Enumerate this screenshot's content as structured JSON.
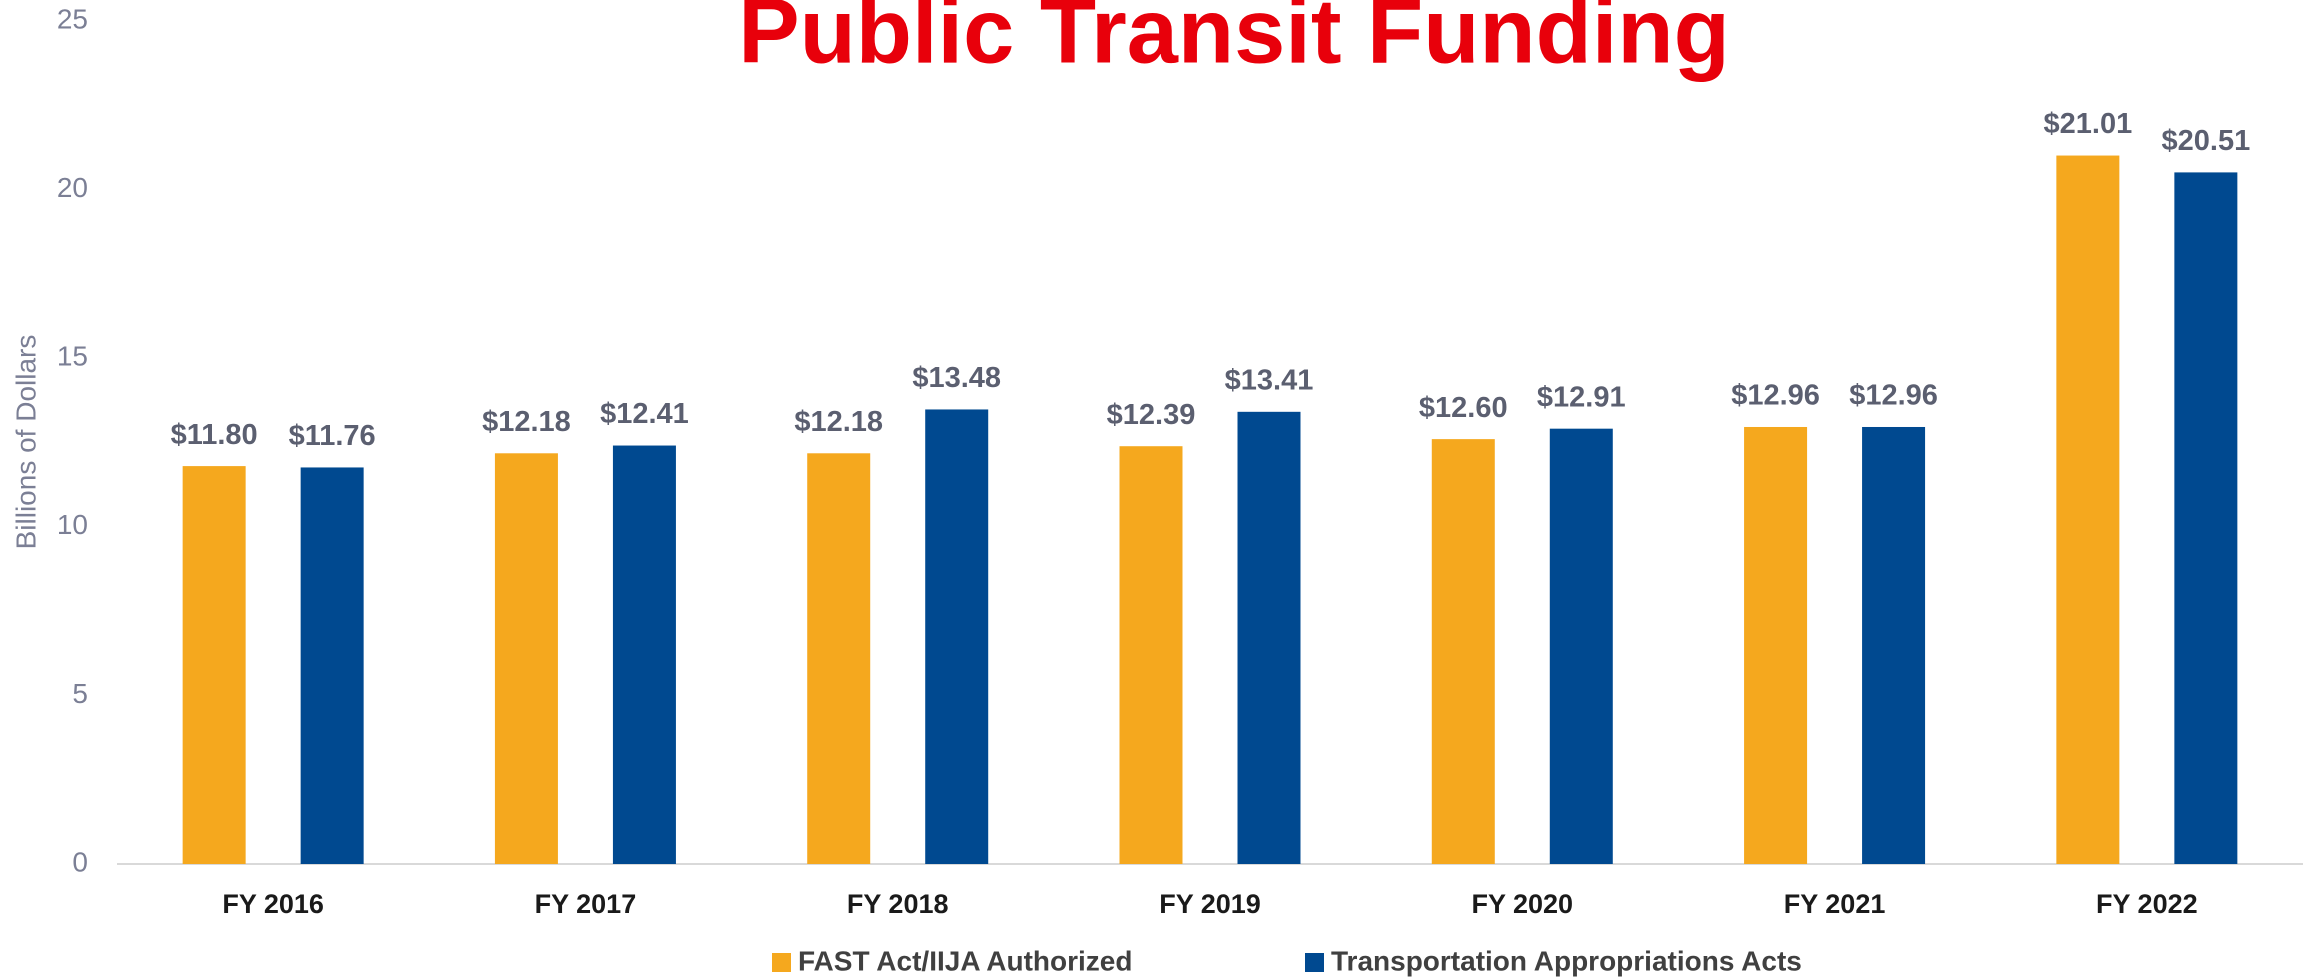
{
  "chart_data": {
    "type": "bar",
    "title": "Public Transit Funding",
    "y_label": "Billions of Dollars",
    "categories": [
      "FY 2016",
      "FY 2017",
      "FY 2018",
      "FY 2019",
      "FY 2020",
      "FY 2021",
      "FY 2022"
    ],
    "series": [
      {
        "name": "FAST Act/IIJA Authorized",
        "color": "#f5a81e",
        "values": [
          11.8,
          12.18,
          12.18,
          12.39,
          12.6,
          12.96,
          21.01
        ],
        "value_labels": [
          "$11.80",
          "$12.18",
          "$12.18",
          "$12.39",
          "$12.60",
          "$12.96",
          "$21.01"
        ]
      },
      {
        "name": "Transportation Appropriations Acts",
        "color": "#004990",
        "values": [
          11.76,
          12.41,
          13.48,
          13.41,
          12.91,
          12.96,
          20.51
        ],
        "value_labels": [
          "$11.76",
          "$12.41",
          "$13.48",
          "$13.41",
          "$12.91",
          "$12.96",
          "$20.51"
        ]
      }
    ],
    "ylim": [
      0,
      25
    ],
    "yticks": [
      0,
      5,
      10,
      15,
      20,
      25
    ],
    "grid": false,
    "legend": "bottom"
  }
}
